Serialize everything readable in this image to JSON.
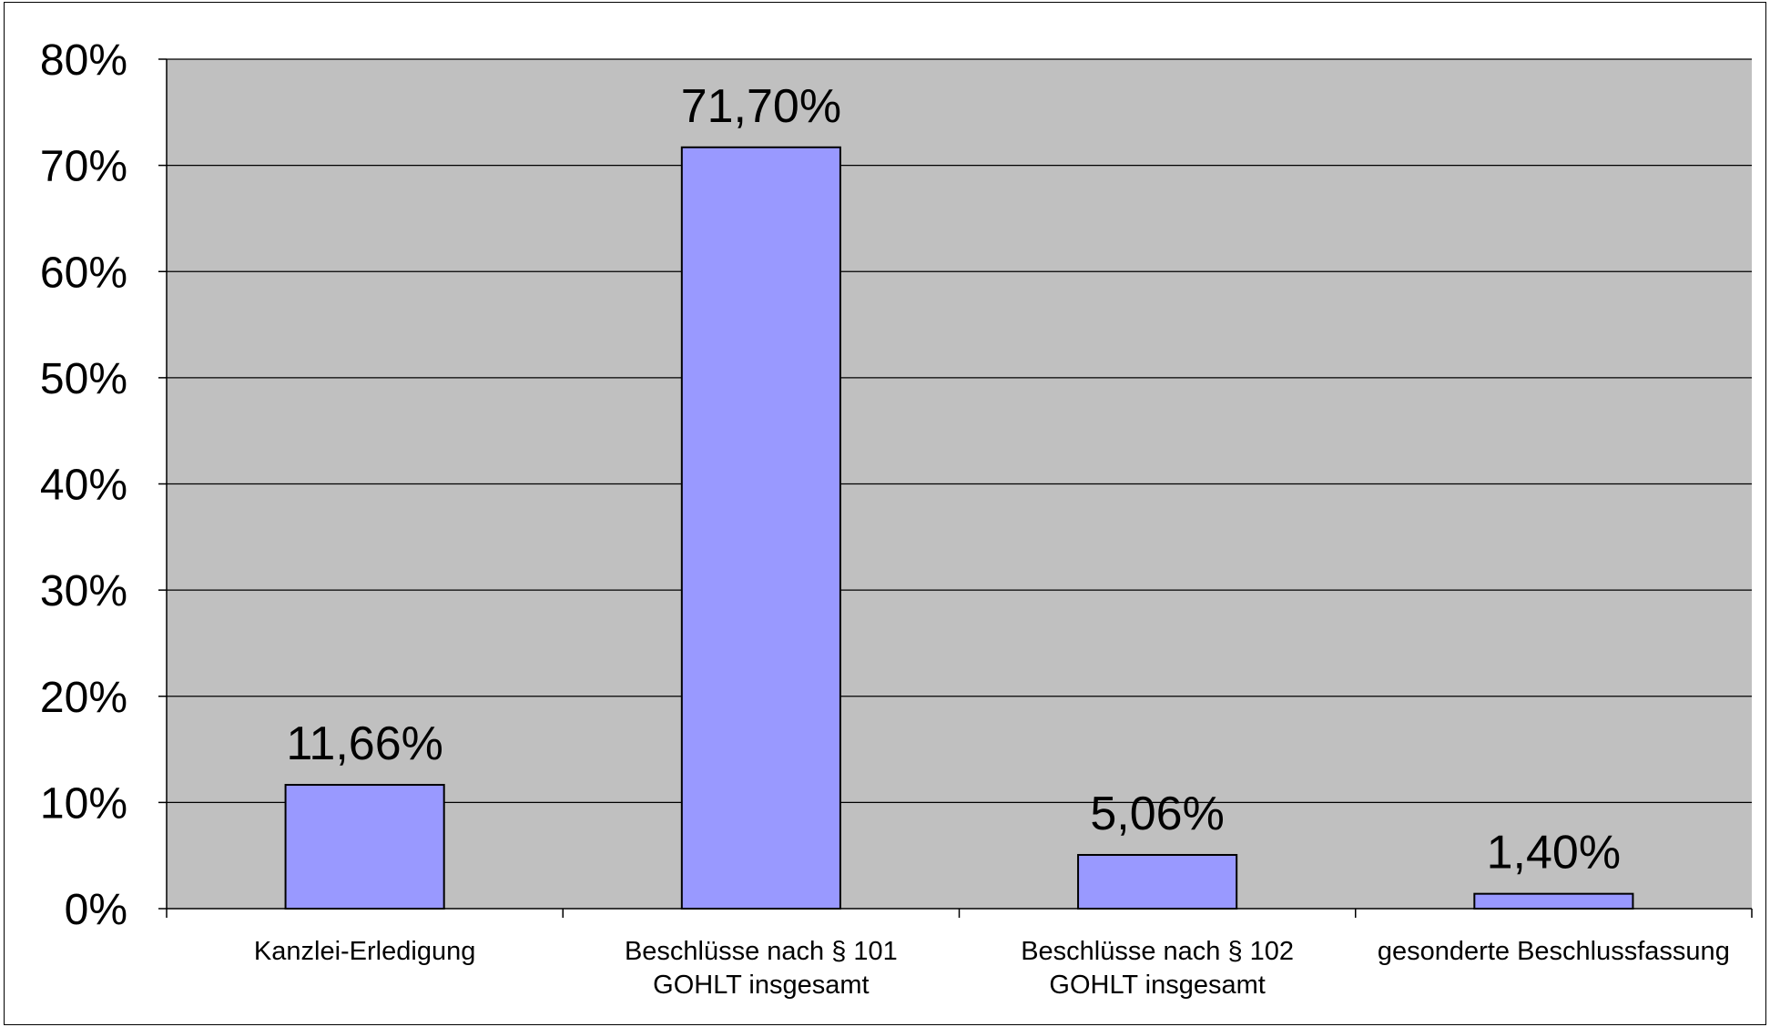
{
  "chart_data": {
    "type": "bar",
    "categories": [
      [
        "Kanzlei-Erledigung"
      ],
      [
        "Beschlüsse nach § 101",
        "GOHLT insgesamt"
      ],
      [
        "Beschlüsse nach § 102",
        "GOHLT insgesamt"
      ],
      [
        "gesonderte Beschlussfassung"
      ]
    ],
    "values": [
      11.66,
      71.7,
      5.06,
      1.4
    ],
    "data_labels": [
      "11,66%",
      "71,70%",
      "5,06%",
      "1,40%"
    ],
    "ylim": [
      0,
      80
    ],
    "yticks": [
      0,
      10,
      20,
      30,
      40,
      50,
      60,
      70,
      80
    ],
    "ytick_labels": [
      "0%",
      "10%",
      "20%",
      "30%",
      "40%",
      "50%",
      "60%",
      "70%",
      "80%"
    ],
    "grid": true,
    "legend": "none",
    "colors": {
      "bar_fill": "#9999ff",
      "plot_background": "#c0c0c0",
      "gridline": "#000000"
    }
  }
}
